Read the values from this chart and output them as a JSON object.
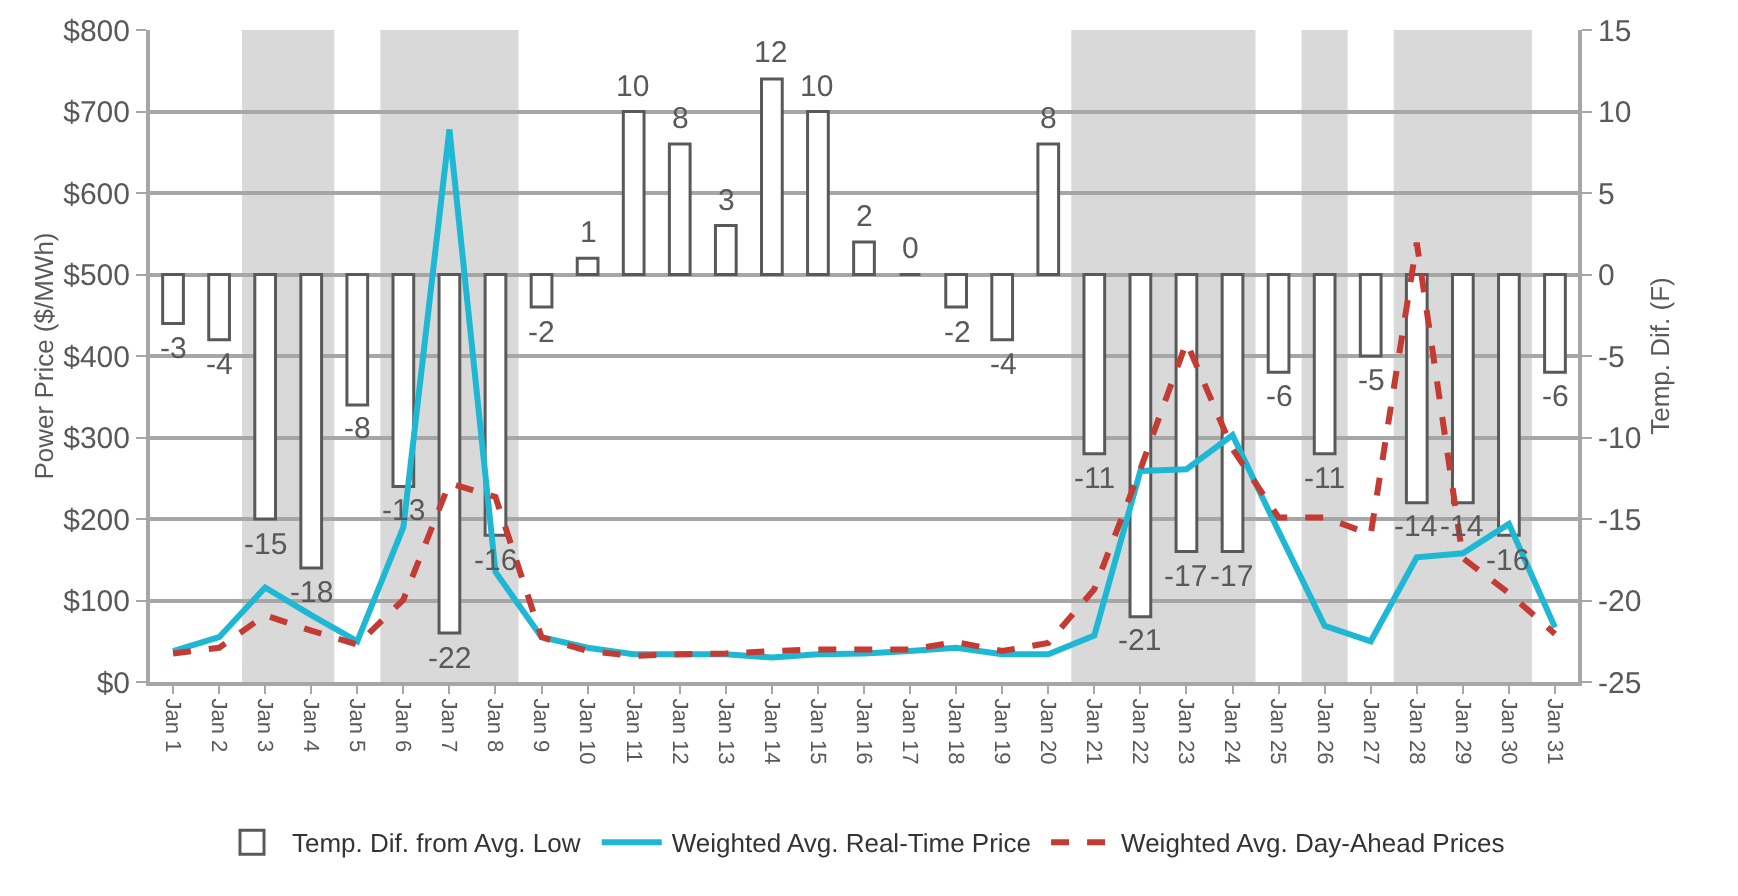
{
  "chart_data": {
    "type": "bar",
    "ylabel": "Power Price ($/MWh)",
    "y2label": "Temp. Dif. (F)",
    "categories": [
      "Jan 1",
      "Jan 2",
      "Jan 3",
      "Jan 4",
      "Jan 5",
      "Jan 6",
      "Jan 7",
      "Jan 8",
      "Jan 9",
      "Jan 10",
      "Jan 11",
      "Jan 12",
      "Jan 13",
      "Jan 14",
      "Jan 15",
      "Jan 16",
      "Jan 17",
      "Jan 18",
      "Jan 19",
      "Jan 20",
      "Jan 21",
      "Jan 22",
      "Jan 23",
      "Jan 24",
      "Jan 25",
      "Jan 26",
      "Jan 27",
      "Jan 28",
      "Jan 29",
      "Jan 30",
      "Jan 31"
    ],
    "series": [
      {
        "name": "Temp. Dif. from Avg. Low",
        "axis": "y2",
        "color": "#595959",
        "data_labels": true,
        "values": [
          -3,
          -4,
          -15,
          -18,
          -8,
          -13,
          -22,
          -16,
          -2,
          1,
          10,
          8,
          3,
          12,
          10,
          2,
          0,
          -2,
          -4,
          8,
          -11,
          -21,
          -17,
          -17,
          -6,
          -11,
          -5,
          -14,
          -14,
          -16,
          -6
        ]
      },
      {
        "name": "Weighted Avg. Real-Time Price",
        "type": "line",
        "color": "#1fb8d4",
        "line_style": "solid",
        "values": [
          38,
          55,
          116,
          82,
          50,
          190,
          678,
          135,
          55,
          42,
          34,
          34,
          34,
          30,
          34,
          35,
          38,
          42,
          34,
          34,
          57,
          259,
          261,
          303,
          185,
          69,
          50,
          153,
          158,
          194,
          67
        ]
      },
      {
        "name": "Weighted Avg. Day-Ahead Prices",
        "type": "line",
        "color": "#c43b33",
        "line_style": "dashed",
        "values": [
          35,
          42,
          82,
          63,
          46,
          101,
          244,
          227,
          55,
          38,
          32,
          34,
          35,
          38,
          40,
          40,
          40,
          49,
          38,
          48,
          114,
          261,
          417,
          286,
          202,
          202,
          181,
          539,
          152,
          109,
          59
        ]
      }
    ],
    "ylim": [
      0,
      800
    ],
    "yticks": [
      {
        "value": 0,
        "label": "$0"
      },
      {
        "value": 100,
        "label": "$100"
      },
      {
        "value": 200,
        "label": "$200"
      },
      {
        "value": 300,
        "label": "$300"
      },
      {
        "value": 400,
        "label": "$400"
      },
      {
        "value": 500,
        "label": "$500"
      },
      {
        "value": 600,
        "label": "$600"
      },
      {
        "value": 700,
        "label": "$700"
      },
      {
        "value": 800,
        "label": "$800"
      }
    ],
    "y2lim": [
      -25,
      15
    ],
    "y2ticks": [
      -25,
      -20,
      -15,
      -10,
      -5,
      0,
      5,
      10,
      15
    ],
    "bands": [
      {
        "axis": "x",
        "from": "Jan 3",
        "to": "Jan 4",
        "color": "#d9d9d9"
      },
      {
        "axis": "x",
        "from": "Jan 6",
        "to": "Jan 8",
        "color": "#d9d9d9"
      },
      {
        "axis": "x",
        "from": "Jan 21",
        "to": "Jan 24",
        "color": "#d9d9d9"
      },
      {
        "axis": "x",
        "from": "Jan 26",
        "to": "Jan 26",
        "color": "#d9d9d9"
      },
      {
        "axis": "x",
        "from": "Jan 28",
        "to": "Jan 30",
        "color": "#d9d9d9"
      }
    ],
    "grid": "y",
    "legend": "bottom",
    "marker": "none"
  }
}
